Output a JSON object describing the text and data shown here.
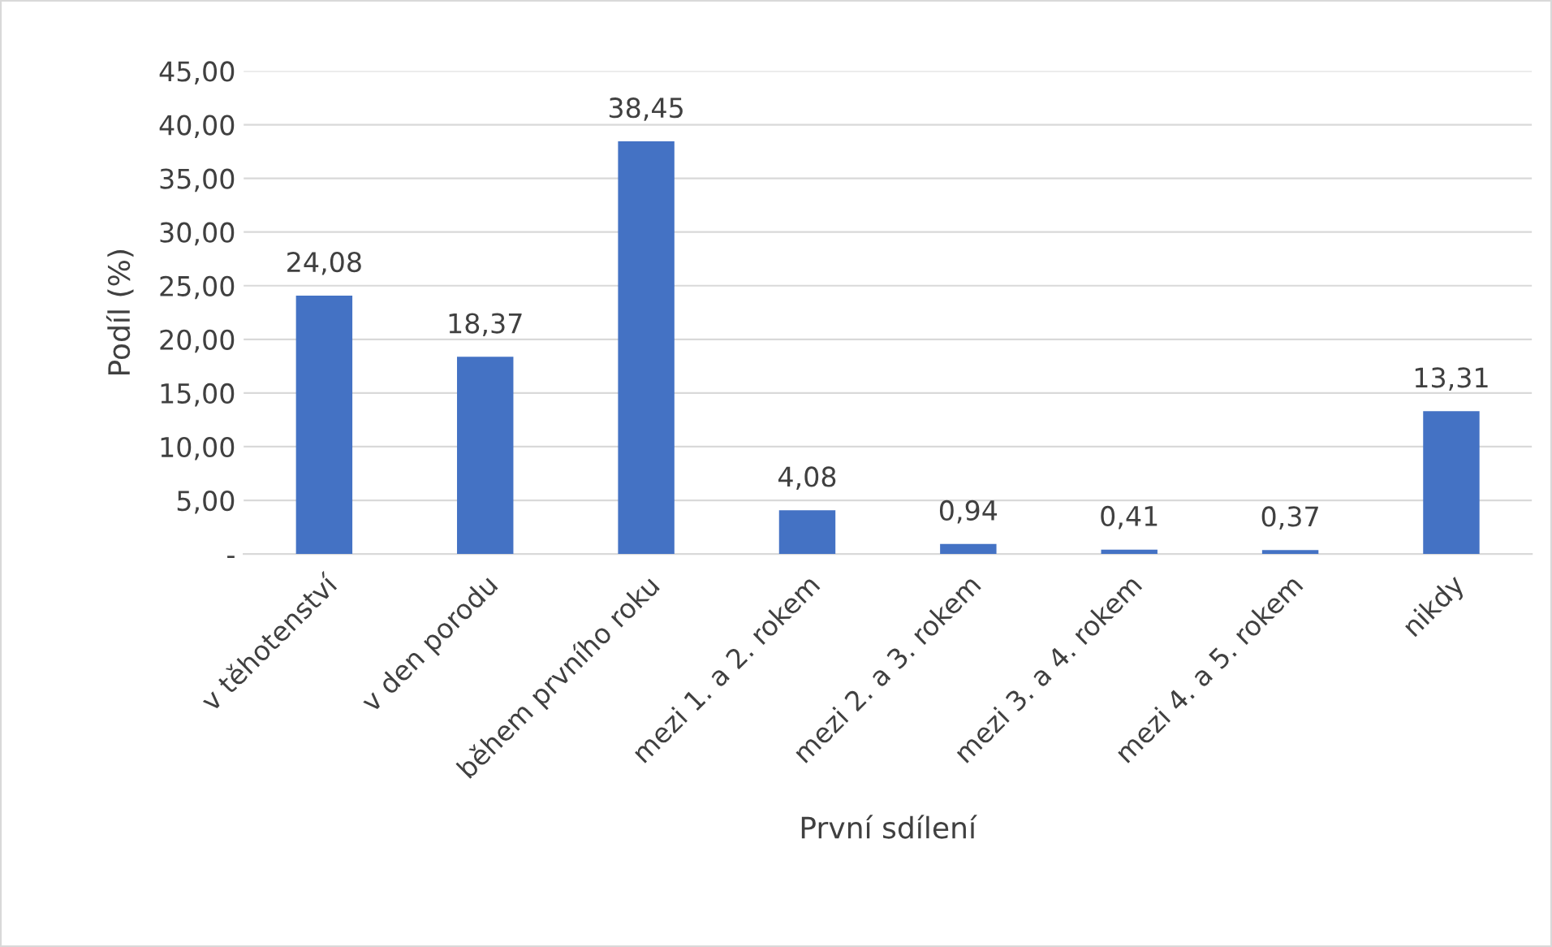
{
  "chart_data": {
    "type": "bar",
    "xlabel": "První sdílení",
    "ylabel": "Podíl (%)",
    "categories": [
      "v těhotenství",
      "v den porodu",
      "během prvního roku",
      "mezi 1. a 2. rokem",
      "mezi 2. a 3. rokem",
      "mezi 3. a 4. rokem",
      "mezi 4. a 5. rokem",
      "nikdy"
    ],
    "values": [
      24.08,
      18.37,
      38.45,
      4.08,
      0.94,
      0.41,
      0.37,
      13.31
    ],
    "value_labels": [
      "24,08",
      "18,37",
      "38,45",
      "4,08",
      "0,94",
      "0,41",
      "0,37",
      "13,31"
    ],
    "color": "#4472c4",
    "ylim": [
      0,
      45
    ],
    "yticks": [
      {
        "value": 0,
        "label": "-"
      },
      {
        "value": 5,
        "label": "5,00"
      },
      {
        "value": 10,
        "label": "10,00"
      },
      {
        "value": 15,
        "label": "15,00"
      },
      {
        "value": 20,
        "label": "20,00"
      },
      {
        "value": 25,
        "label": "25,00"
      },
      {
        "value": 30,
        "label": "30,00"
      },
      {
        "value": 35,
        "label": "35,00"
      },
      {
        "value": 40,
        "label": "40,00"
      },
      {
        "value": 45,
        "label": "45,00"
      }
    ],
    "grid": "y",
    "legend": false
  }
}
